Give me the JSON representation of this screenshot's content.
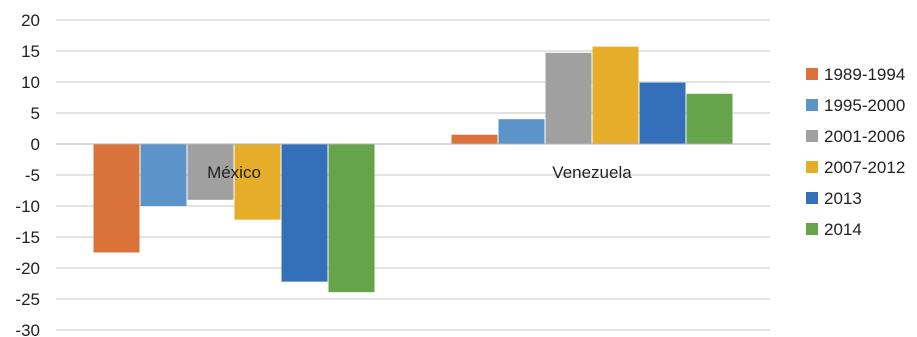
{
  "chart_data": {
    "type": "bar",
    "title": "",
    "xlabel": "",
    "ylabel": "",
    "ylim": [
      -30,
      20
    ],
    "yticks": [
      20,
      15,
      10,
      5,
      0,
      -5,
      -10,
      -15,
      -20,
      -25,
      -30
    ],
    "grid": true,
    "legend_position": "right",
    "categories": [
      "México",
      "Venezuela"
    ],
    "series": [
      {
        "name": "1989-1994",
        "color": "#d9733a",
        "values": [
          -17.5,
          1.5
        ]
      },
      {
        "name": "1995-2000",
        "color": "#5b94c8",
        "values": [
          -10,
          4
        ]
      },
      {
        "name": "2001-2006",
        "color": "#a0a0a0",
        "values": [
          -9,
          14.7
        ]
      },
      {
        "name": "2007-2012",
        "color": "#e5ad2a",
        "values": [
          -12.2,
          15.7
        ]
      },
      {
        "name": "2013",
        "color": "#3470b9",
        "values": [
          -22.2,
          9.9
        ]
      },
      {
        "name": "2014",
        "color": "#66a44c",
        "values": [
          -23.9,
          8.1
        ]
      }
    ]
  }
}
